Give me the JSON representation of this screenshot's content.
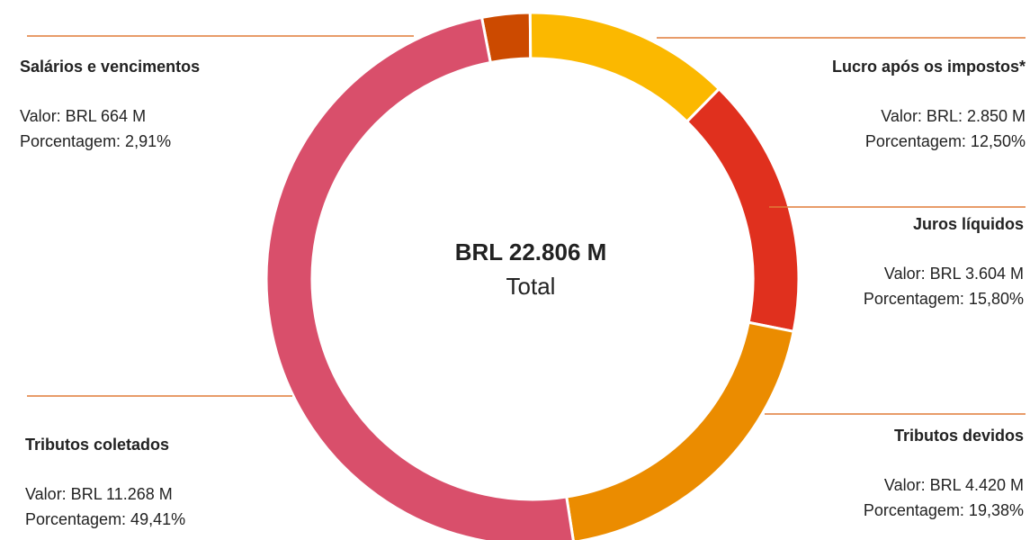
{
  "chart_data": {
    "type": "pie",
    "center_label": "BRL 22.806 M",
    "center_sublabel": "Total",
    "categories": [
      "Salários e vencimentos",
      "Lucro após os impostos*",
      "Juros líquidos",
      "Tributos devidos",
      "Tributos coletados"
    ],
    "values": [
      664,
      2850,
      3604,
      4420,
      11268
    ],
    "value_labels": [
      "Valor: BRL 664 M",
      "Valor: BRL: 2.850 M",
      "Valor: BRL 3.604 M",
      "Valor: BRL 4.420 M",
      "Valor: BRL 11.268 M"
    ],
    "percentages": [
      2.91,
      12.5,
      15.8,
      19.38,
      49.41
    ],
    "percentage_labels": [
      "Porcentagem: 2,91%",
      "Porcentagem: 12,50%",
      "Porcentagem: 15,80%",
      "Porcentagem: 19,38%",
      "Porcentagem: 49,41%"
    ],
    "colors": [
      "#cc4a00",
      "#fbb800",
      "#e0301e",
      "#eb8c00",
      "#d94f6b"
    ]
  }
}
